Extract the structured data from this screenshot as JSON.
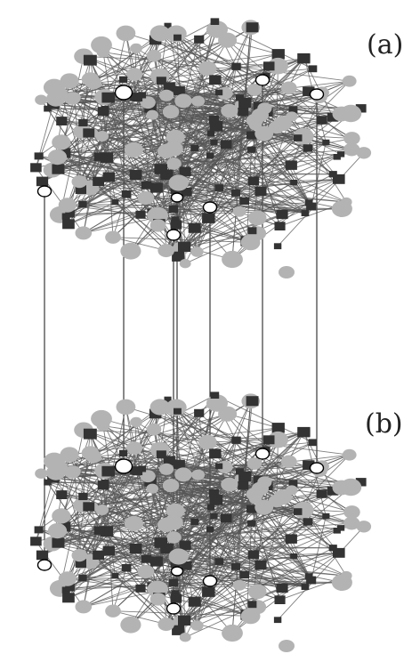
{
  "panels": [
    {
      "id": "a",
      "label": "(a)"
    },
    {
      "id": "b",
      "label": "(b)"
    }
  ],
  "legend": {
    "node_kinds": [
      "circle",
      "square",
      "shared-node"
    ]
  },
  "colors": {
    "circle_node": "#b3b3b3",
    "square_node": "#333333",
    "edge": "#555555",
    "shared_node_fill": "#ffffff",
    "shared_node_stroke": "#000000",
    "interlayer_link": "#111111"
  },
  "network": {
    "nodes_per_layer": 200,
    "edges_per_layer": 560,
    "shared_nodes": 8
  }
}
